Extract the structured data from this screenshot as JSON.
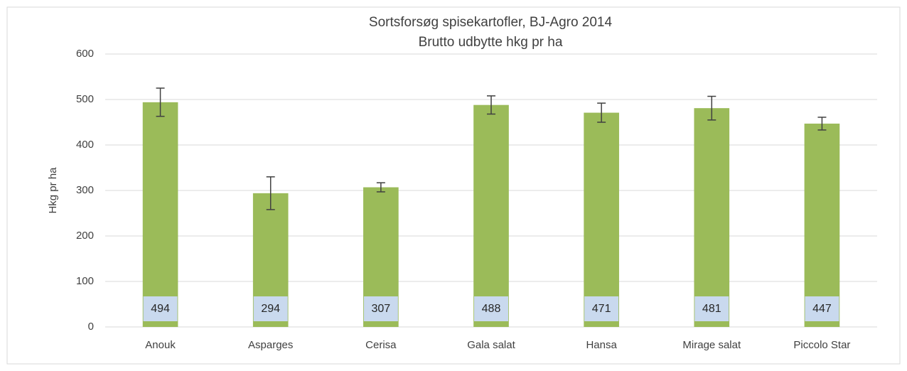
{
  "chart_data": {
    "type": "bar",
    "title": "Sortsforsøg spisekartofler, BJ-Agro 2014",
    "subtitle": "Brutto udbytte hkg pr ha",
    "y_label": "Hkg pr ha",
    "categories": [
      "Anouk",
      "Asparges",
      "Cerisa",
      "Gala salat",
      "Hansa",
      "Mirage salat",
      "Piccolo Star"
    ],
    "values": [
      494,
      294,
      307,
      488,
      471,
      481,
      447
    ],
    "errors": [
      31,
      36,
      10,
      20,
      21,
      26,
      14
    ],
    "color": "#9bbb59",
    "ylim": [
      0,
      600
    ],
    "yticks": [
      0,
      100,
      200,
      300,
      400,
      500,
      600
    ],
    "grid": true
  }
}
